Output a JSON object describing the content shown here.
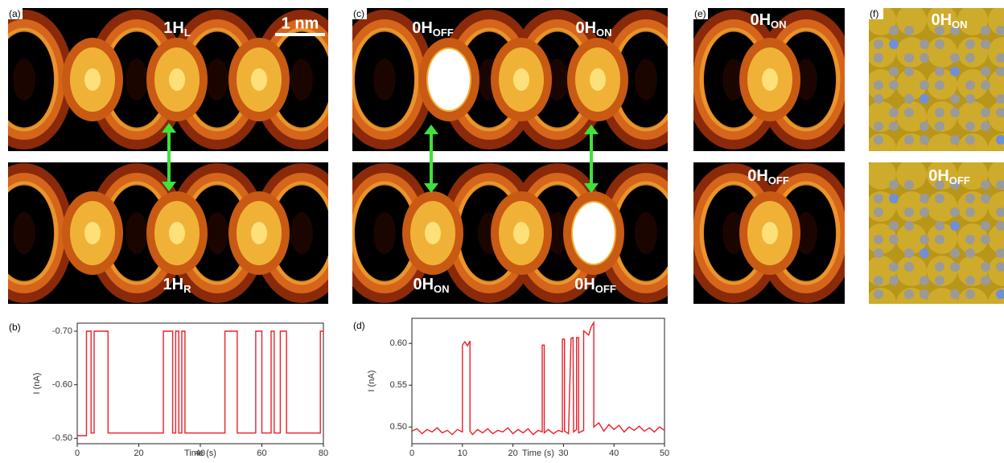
{
  "panels": [
    "(a)",
    "(b)",
    "(c)",
    "(d)",
    "(e)",
    "(f)"
  ],
  "scale_bar": "1 nm",
  "image_labels": [
    {
      "main": "1H",
      "sub": "L"
    },
    {
      "main": "1H",
      "sub": "R"
    },
    {
      "main": "0H",
      "sub": "OFF"
    },
    {
      "main": "0H",
      "sub": "ON"
    },
    {
      "main": "0H",
      "sub": "ON"
    },
    {
      "main": "0H",
      "sub": "OFF"
    },
    {
      "main": "0H",
      "sub": "ON"
    },
    {
      "main": "0H",
      "sub": "OFF"
    },
    {
      "main": "0H",
      "sub": "ON"
    },
    {
      "main": "0H",
      "sub": "OFF"
    }
  ],
  "chart_data": [
    {
      "type": "line",
      "xlabel": "Time (s)",
      "ylabel": "I (nA)",
      "color": "#e8202a",
      "x": [
        0,
        3,
        3,
        4.5,
        4.5,
        5.5,
        5.5,
        10,
        10,
        28,
        28,
        31,
        31,
        32,
        32,
        33,
        33,
        34,
        34,
        35,
        35,
        48,
        48,
        52,
        52,
        58,
        58,
        60,
        60,
        63,
        63,
        64,
        64,
        66,
        66,
        68,
        68,
        79,
        79,
        80
      ],
      "values": [
        -0.505,
        -0.505,
        -0.7,
        -0.7,
        -0.51,
        -0.51,
        -0.7,
        -0.7,
        -0.51,
        -0.51,
        -0.7,
        -0.7,
        -0.51,
        -0.51,
        -0.7,
        -0.7,
        -0.51,
        -0.51,
        -0.7,
        -0.7,
        -0.51,
        -0.51,
        -0.7,
        -0.7,
        -0.51,
        -0.51,
        -0.7,
        -0.7,
        -0.51,
        -0.51,
        -0.7,
        -0.7,
        -0.51,
        -0.51,
        -0.7,
        -0.7,
        -0.51,
        -0.51,
        -0.7,
        -0.7
      ],
      "xlim": [
        0,
        80
      ],
      "xticks": [
        0,
        20,
        40,
        60,
        80
      ],
      "ylim": [
        -0.49,
        -0.715
      ],
      "yticks": [
        {
          "value": -0.7,
          "label": "-0.70"
        },
        {
          "value": -0.6,
          "label": "-0.60"
        },
        {
          "value": -0.5,
          "label": "-0.50"
        }
      ]
    },
    {
      "type": "line",
      "xlabel": "Time (s)",
      "ylabel": "I (nA)",
      "color": "#e8202a",
      "x": [
        0,
        1,
        2,
        3,
        4,
        5,
        6,
        7,
        8,
        9,
        10,
        10,
        10.5,
        11,
        11.5,
        11.5,
        12,
        13,
        14,
        15,
        16,
        17,
        18,
        19,
        20,
        21,
        22,
        23,
        24,
        25,
        25.8,
        25.8,
        26.2,
        26.2,
        27,
        28,
        29,
        29.8,
        29.8,
        30.2,
        30.2,
        31,
        31.5,
        31.9,
        32,
        32.6,
        32.6,
        33,
        33,
        34,
        34,
        35,
        35.5,
        36,
        36,
        37,
        38,
        39,
        40,
        41,
        42,
        43,
        44,
        45,
        46,
        47,
        48,
        49,
        50
      ],
      "values": [
        0.495,
        0.498,
        0.492,
        0.497,
        0.494,
        0.499,
        0.493,
        0.496,
        0.491,
        0.497,
        0.494,
        0.598,
        0.602,
        0.597,
        0.603,
        0.495,
        0.491,
        0.497,
        0.493,
        0.498,
        0.492,
        0.496,
        0.494,
        0.499,
        0.492,
        0.497,
        0.493,
        0.498,
        0.491,
        0.496,
        0.494,
        0.598,
        0.598,
        0.493,
        0.497,
        0.492,
        0.496,
        0.494,
        0.605,
        0.605,
        0.495,
        0.492,
        0.606,
        0.607,
        0.494,
        0.497,
        0.607,
        0.607,
        0.493,
        0.496,
        0.615,
        0.61,
        0.62,
        0.625,
        0.5,
        0.505,
        0.495,
        0.503,
        0.497,
        0.502,
        0.494,
        0.5,
        0.496,
        0.501,
        0.495,
        0.499,
        0.494,
        0.5,
        0.496
      ],
      "xlim": [
        0,
        50
      ],
      "xticks": [
        0,
        10,
        20,
        30,
        40,
        50
      ],
      "ylim": [
        0.48,
        0.63
      ],
      "yticks": [
        {
          "value": 0.5,
          "label": "0.50"
        },
        {
          "value": 0.55,
          "label": "0.55"
        },
        {
          "value": 0.6,
          "label": "0.60"
        }
      ]
    }
  ]
}
